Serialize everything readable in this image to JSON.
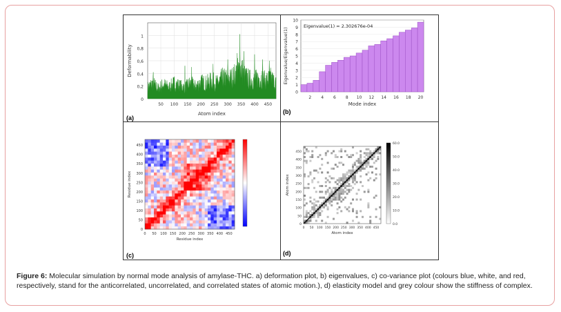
{
  "panels": {
    "a": {
      "label": "(a)"
    },
    "b": {
      "label": "(b)"
    },
    "c": {
      "label": "(c)"
    },
    "d": {
      "label": "(d)"
    }
  },
  "caption": {
    "title": "Figure 6:",
    "text": " Molecular simulation by normal mode analysis of amylase-THC. a) deformation plot, b) eigenvalues, c) co-variance plot (colours blue, white, and red, respectively, stand for the anticorrelated, uncorrelated, and correlated states of atomic motion.), d) elasticity model and grey colour show the stiffness of complex."
  },
  "chart_data": [
    {
      "id": "a",
      "type": "area",
      "xlabel": "Atom index",
      "ylabel": "Deformability",
      "xticks": [
        50,
        100,
        150,
        200,
        250,
        300,
        350,
        400,
        450
      ],
      "yticks": [
        0,
        0.2,
        0.4,
        0.6,
        0.8,
        1
      ],
      "ytick_labels": [
        "0",
        "0,2",
        "0,4",
        "0,6",
        "0,8",
        "1"
      ],
      "xlim": [
        1,
        480
      ],
      "ylim": [
        0,
        1.2
      ],
      "color": "#228b22",
      "profile_x": [
        1,
        20,
        40,
        60,
        80,
        100,
        120,
        140,
        160,
        180,
        200,
        220,
        240,
        260,
        280,
        300,
        320,
        340,
        350,
        360,
        380,
        400,
        420,
        440,
        460,
        480
      ],
      "profile_y": [
        0.22,
        0.3,
        0.2,
        0.28,
        0.22,
        0.3,
        0.25,
        0.22,
        0.3,
        0.24,
        0.32,
        0.3,
        0.35,
        0.3,
        0.4,
        0.38,
        0.42,
        0.55,
        0.6,
        0.45,
        0.38,
        0.36,
        0.42,
        0.35,
        0.4,
        0.3
      ],
      "peaks": [
        [
          22,
          0.42
        ],
        [
          140,
          0.52
        ],
        [
          165,
          0.5
        ],
        [
          245,
          0.55
        ],
        [
          300,
          0.62
        ],
        [
          335,
          0.72
        ],
        [
          345,
          1.02
        ],
        [
          360,
          0.75
        ],
        [
          400,
          0.7
        ],
        [
          430,
          0.62
        ],
        [
          455,
          0.6
        ]
      ]
    },
    {
      "id": "b",
      "type": "bar",
      "title": "Eigenvalue(1) = 2.302676e-04",
      "xlabel": "Mode index",
      "ylabel": "Eigenvalue/Eigenvalue(1)",
      "categories": [
        1,
        2,
        3,
        4,
        5,
        6,
        7,
        8,
        9,
        10,
        11,
        12,
        13,
        14,
        15,
        16,
        17,
        18,
        19,
        20
      ],
      "xticks": [
        2,
        4,
        6,
        8,
        10,
        12,
        14,
        16,
        18,
        20
      ],
      "values": [
        1.0,
        1.2,
        1.6,
        2.8,
        3.7,
        4.1,
        4.4,
        4.8,
        5.0,
        5.4,
        5.8,
        6.4,
        6.6,
        7.1,
        7.4,
        7.8,
        8.3,
        8.6,
        8.9,
        9.7
      ],
      "ylim": [
        0,
        10
      ],
      "yticks": [
        0,
        1,
        2,
        3,
        4,
        5,
        6,
        7,
        8,
        9,
        10
      ],
      "color": "#cc88ee"
    },
    {
      "id": "c",
      "type": "heatmap",
      "xlabel": "Residue index",
      "ylabel": "Residue index",
      "xticks": [
        0,
        50,
        100,
        150,
        200,
        250,
        300,
        350,
        400,
        450
      ],
      "yticks": [
        0,
        50,
        100,
        150,
        200,
        250,
        300,
        350,
        400,
        450
      ],
      "range": [
        0,
        480
      ],
      "colormap": [
        "#0000ff",
        "#ffffff",
        "#ff0000"
      ]
    },
    {
      "id": "d",
      "type": "heatmap",
      "xlabel": "Atom index",
      "ylabel": "Atom index",
      "xticks": [
        0,
        50,
        100,
        150,
        200,
        250,
        300,
        350,
        400,
        450
      ],
      "yticks": [
        0,
        50,
        100,
        150,
        200,
        250,
        300,
        350,
        400,
        450
      ],
      "range": [
        0,
        480
      ],
      "colorbar_ticks": [
        "0.0",
        "10.0",
        "20.0",
        "30.0",
        "40.0",
        "50.0",
        "60.0"
      ],
      "colormap": [
        "#ffffff",
        "#000000"
      ]
    }
  ]
}
